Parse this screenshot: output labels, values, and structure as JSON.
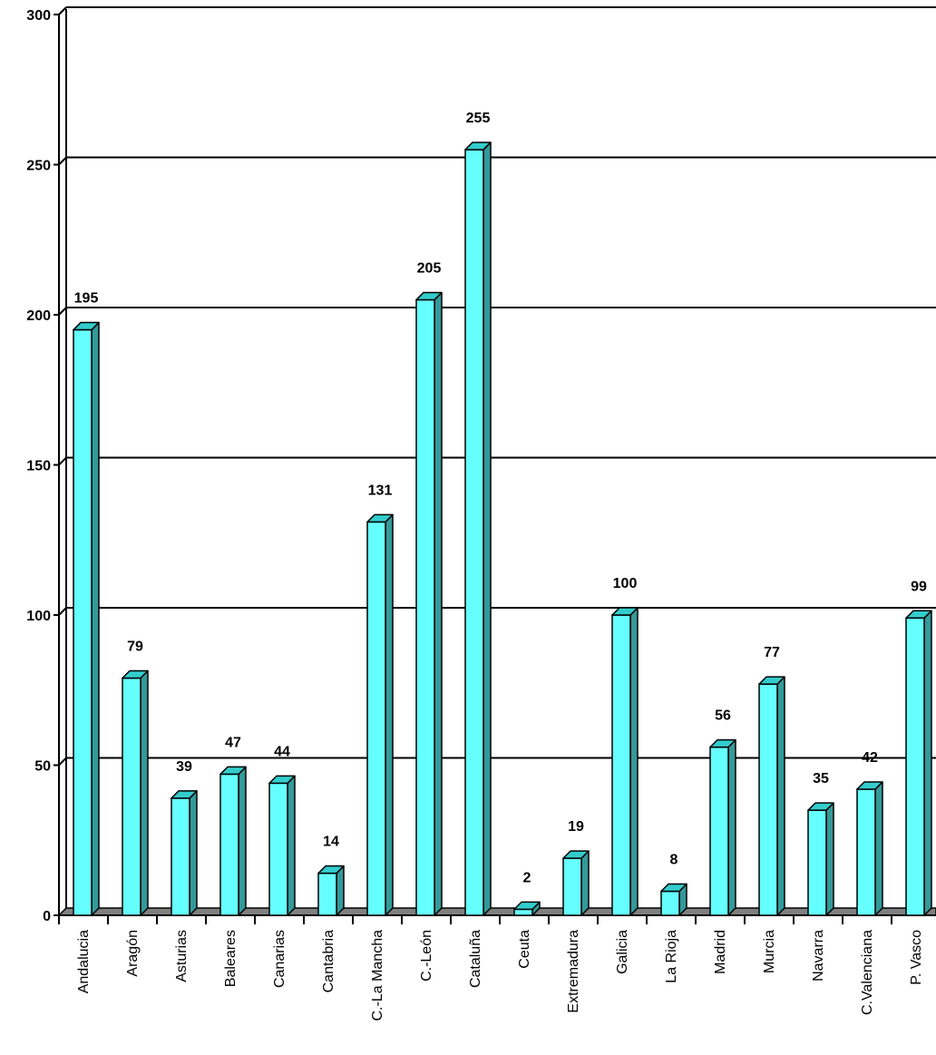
{
  "colors": {
    "bar_front": "#66FFFF",
    "bar_top": "#33CCCC",
    "bar_side": "#339999",
    "floor": "#808080",
    "line": "#000000",
    "background": "#FFFFFF"
  },
  "chart_data": {
    "type": "bar",
    "style": "3d",
    "grid": true,
    "ylim": [
      0,
      300
    ],
    "y_ticks": [
      "0",
      "50",
      "100",
      "150",
      "200",
      "250",
      "300"
    ],
    "categories": [
      "Andalucia",
      "Aragón",
      "Asturias",
      "Baleares",
      "Canarias",
      "Cantabria",
      "C.-La Mancha",
      "C.-León",
      "Cataluña",
      "Ceuta",
      "Extremadura",
      "Galicia",
      "La Rioja",
      "Madrid",
      "Murcia",
      "Navarra",
      "C.Valenciana",
      "P. Vasco"
    ],
    "values": [
      195,
      79,
      39,
      47,
      44,
      14,
      131,
      205,
      255,
      2,
      19,
      100,
      8,
      56,
      77,
      35,
      42,
      99
    ],
    "data_labels": [
      "195",
      "79",
      "39",
      "47",
      "44",
      "14",
      "131",
      "205",
      "255",
      "2",
      "19",
      "100",
      "8",
      "56",
      "77",
      "35",
      "42",
      "99"
    ]
  }
}
